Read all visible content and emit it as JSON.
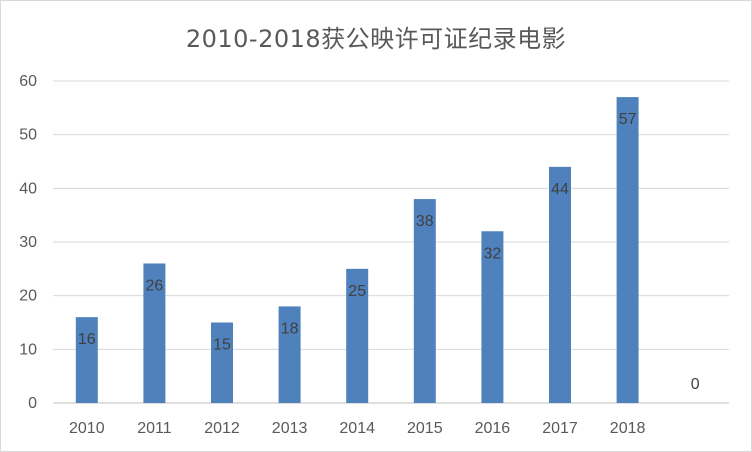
{
  "chart_data": {
    "type": "bar",
    "title": "2010-2018获公映许可证纪录电影",
    "categories": [
      "2010",
      "2011",
      "2012",
      "2013",
      "2014",
      "2015",
      "2016",
      "2017",
      "2018",
      ""
    ],
    "values": [
      16,
      26,
      15,
      18,
      25,
      38,
      32,
      44,
      57,
      0
    ],
    "data_labels": [
      "16",
      "26",
      "15",
      "18",
      "25",
      "38",
      "32",
      "44",
      "57",
      "0"
    ],
    "ylim": [
      0,
      60
    ],
    "yticks": [
      0,
      10,
      20,
      30,
      40,
      50,
      60
    ],
    "ytick_labels": [
      "0",
      "10",
      "20",
      "30",
      "40",
      "50",
      "60"
    ],
    "xlabel": "",
    "ylabel": "",
    "grid": true,
    "legend": "none",
    "bar_color": "#4f81bd",
    "grid_color": "#d9d9d9"
  }
}
